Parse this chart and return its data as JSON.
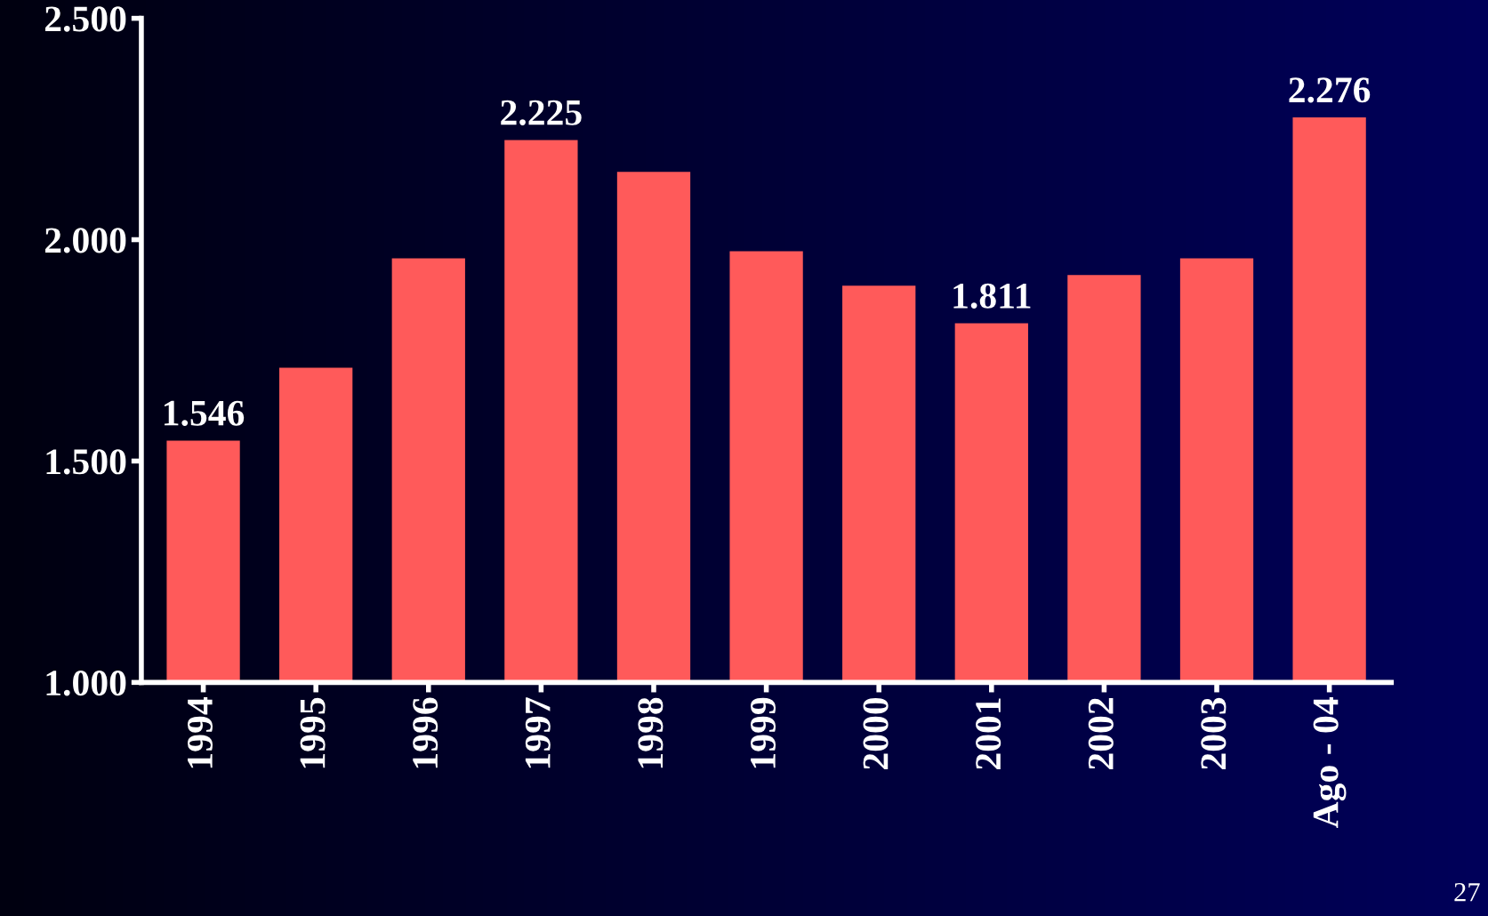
{
  "chart_data": {
    "type": "bar",
    "categories": [
      "1994",
      "1995",
      "1996",
      "1997",
      "1998",
      "1999",
      "2000",
      "2001",
      "2002",
      "2003",
      "Ago - 04"
    ],
    "values": [
      1546,
      1711,
      1958,
      2225,
      2153,
      1974,
      1896,
      1811,
      1920,
      1958,
      2276
    ],
    "value_labels": [
      "1.546",
      null,
      null,
      "2.225",
      null,
      null,
      null,
      "1.811",
      null,
      null,
      "2.276"
    ],
    "color": "#ff5a5a",
    "ylim": [
      1000,
      2500
    ],
    "yticks": [
      {
        "value": 1000,
        "label": "1.000"
      },
      {
        "value": 1500,
        "label": "1.500"
      },
      {
        "value": 2000,
        "label": "2.000"
      },
      {
        "value": 2500,
        "label": "2.500"
      }
    ],
    "grid": false,
    "annotations": [
      "27"
    ]
  }
}
